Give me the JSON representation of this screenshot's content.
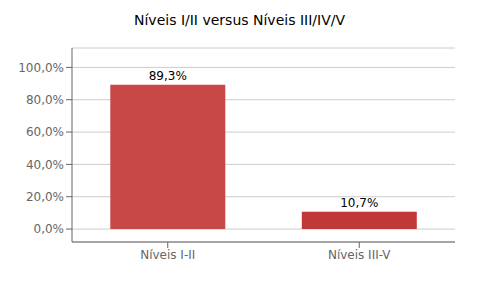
{
  "chart_data": {
    "type": "bar",
    "title": "Níveis I/II versus Níveis III/IV/V",
    "categories": [
      "Níveis I-II",
      "Níveis III-V"
    ],
    "values": [
      89.3,
      10.7
    ],
    "value_labels": [
      "89,3%",
      "10,7%"
    ],
    "data_labels": true,
    "colors": [
      "#c84848",
      "#c03838"
    ],
    "ylim": [
      -8,
      112
    ],
    "yticks": [
      {
        "value": 0,
        "label": "0,0%"
      },
      {
        "value": 20,
        "label": "20,0%"
      },
      {
        "value": 40,
        "label": "40,0%"
      },
      {
        "value": 60,
        "label": "60,0%"
      },
      {
        "value": 80,
        "label": "80,0%"
      },
      {
        "value": 100,
        "label": "100,0%"
      }
    ],
    "grid": true
  }
}
